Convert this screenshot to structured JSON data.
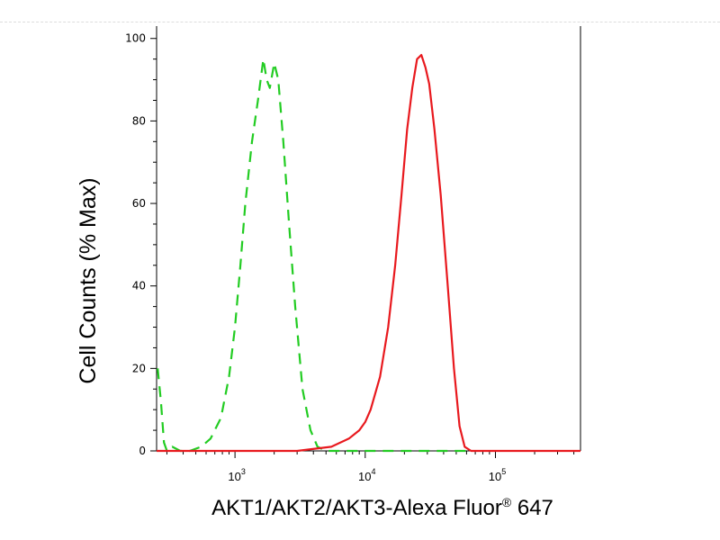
{
  "chart_data": {
    "type": "line",
    "title": "",
    "xlabel": "AKT1/AKT2/AKT3-Alexa Fluor",
    "xlabel_registered": "®",
    "xlabel_suffix": " 647",
    "ylabel": "Cell Counts (% Max)",
    "x_scale": "log",
    "xlim": [
      250,
      450000
    ],
    "ylim": [
      0,
      103
    ],
    "x_tick_labels": [
      {
        "value": 1000,
        "base": "10",
        "exp": "3"
      },
      {
        "value": 10000,
        "base": "10",
        "exp": "4"
      },
      {
        "value": 100000,
        "base": "10",
        "exp": "5"
      }
    ],
    "y_ticks": [
      0,
      20,
      40,
      60,
      80,
      100
    ],
    "grid": false,
    "legend": "none",
    "series": [
      {
        "style": "dashed",
        "color": "#22cc22",
        "points": [
          [
            255,
            20
          ],
          [
            270,
            12
          ],
          [
            285,
            2
          ],
          [
            300,
            0
          ],
          [
            330,
            1
          ],
          [
            380,
            0
          ],
          [
            450,
            0
          ],
          [
            550,
            1
          ],
          [
            650,
            3
          ],
          [
            780,
            8
          ],
          [
            900,
            18
          ],
          [
            1000,
            30
          ],
          [
            1100,
            45
          ],
          [
            1200,
            60
          ],
          [
            1350,
            75
          ],
          [
            1500,
            85
          ],
          [
            1650,
            95
          ],
          [
            1750,
            90
          ],
          [
            1850,
            88
          ],
          [
            2000,
            94
          ],
          [
            2150,
            90
          ],
          [
            2350,
            75
          ],
          [
            2600,
            55
          ],
          [
            2900,
            35
          ],
          [
            3300,
            15
          ],
          [
            3800,
            5
          ],
          [
            4300,
            1
          ],
          [
            5000,
            0
          ],
          [
            7000,
            0
          ],
          [
            20000,
            0
          ],
          [
            60000,
            0
          ]
        ]
      },
      {
        "style": "solid",
        "color": "#e8191e",
        "points": [
          [
            250,
            0
          ],
          [
            3000,
            0
          ],
          [
            5500,
            1
          ],
          [
            7500,
            3
          ],
          [
            9000,
            5
          ],
          [
            10000,
            7
          ],
          [
            11000,
            10
          ],
          [
            13000,
            18
          ],
          [
            15000,
            30
          ],
          [
            17000,
            45
          ],
          [
            19000,
            62
          ],
          [
            21000,
            78
          ],
          [
            23000,
            88
          ],
          [
            25000,
            95
          ],
          [
            27000,
            96
          ],
          [
            29000,
            93
          ],
          [
            31000,
            89
          ],
          [
            34000,
            78
          ],
          [
            38000,
            62
          ],
          [
            43000,
            40
          ],
          [
            48000,
            20
          ],
          [
            53000,
            6
          ],
          [
            58000,
            1
          ],
          [
            65000,
            0
          ],
          [
            100000,
            0
          ],
          [
            200000,
            0
          ],
          [
            450000,
            0
          ]
        ]
      }
    ]
  }
}
